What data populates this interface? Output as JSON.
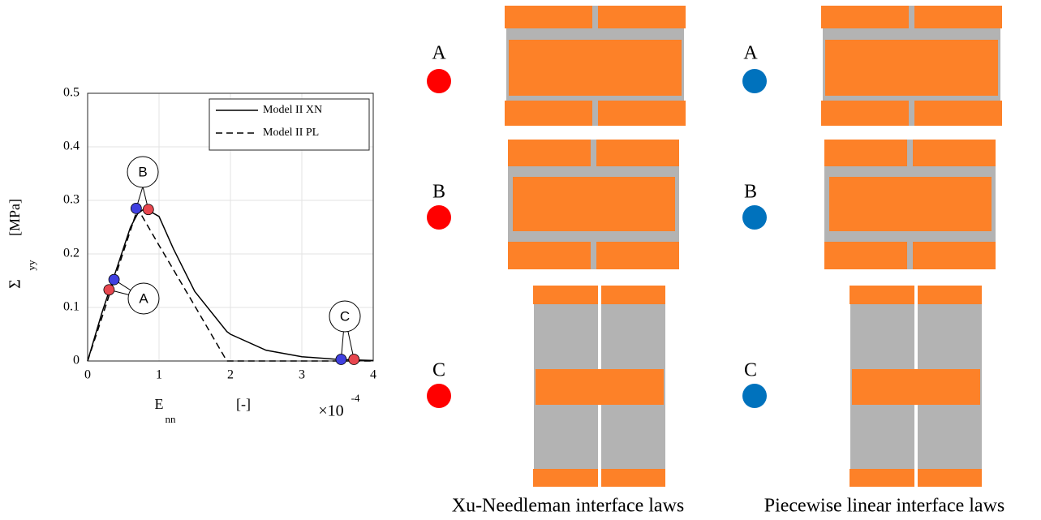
{
  "chart_data": {
    "type": "line",
    "x_label": "E",
    "x_label_sub": "nn",
    "x_unit": "[-]",
    "y_label": "Σ",
    "y_label_sub": "yy",
    "y_unit": "[MPa]",
    "x_multiplier": "×10",
    "x_exponent": "-4",
    "x": [
      0,
      0.2,
      0.4,
      0.6,
      0.7,
      0.8,
      1,
      1.2,
      1.5,
      1.95,
      2,
      2.5,
      3,
      3.5,
      4
    ],
    "series": [
      {
        "name": "Model II XN",
        "color": "#000000",
        "dash": false,
        "values": [
          0,
          0.09,
          0.17,
          0.25,
          0.275,
          0.285,
          0.27,
          0.21,
          0.13,
          0.055,
          0.05,
          0.02,
          0.008,
          0.003,
          0.001
        ]
      },
      {
        "name": "Model II PL",
        "color": "#000000",
        "dash": true,
        "values": [
          0,
          0.081,
          0.163,
          0.244,
          0.285,
          0.262,
          0.216,
          0.171,
          0.103,
          0,
          0,
          0,
          0,
          0,
          0
        ]
      }
    ],
    "points": {
      "x": [
        0.3,
        0.37,
        0.68,
        0.85,
        3.55,
        3.73
      ],
      "values": [
        0.133,
        0.152,
        0.285,
        0.283,
        0.003,
        0.003
      ],
      "colors": [
        "#e8474f",
        "#4040e0",
        "#4040e0",
        "#e8474f",
        "#4040e0",
        "#e8474f"
      ]
    },
    "callouts": [
      "A",
      "B",
      "C"
    ],
    "xlim": [
      0,
      4
    ],
    "ylim": [
      0,
      0.5
    ],
    "xticks": [
      0,
      1,
      2,
      3,
      4
    ],
    "yticks": [
      0,
      0.1,
      0.2,
      0.3,
      0.4,
      0.5
    ],
    "grid": true,
    "legend": "upper right"
  },
  "panels": [
    {
      "caption": "Xu-Needleman interface laws",
      "rows": [
        "A",
        "B",
        "C"
      ],
      "dot_color": "#ff0000"
    },
    {
      "caption": "Piecewise linear interface laws",
      "rows": [
        "A",
        "B",
        "C"
      ],
      "dot_color": "#0072bd"
    }
  ]
}
